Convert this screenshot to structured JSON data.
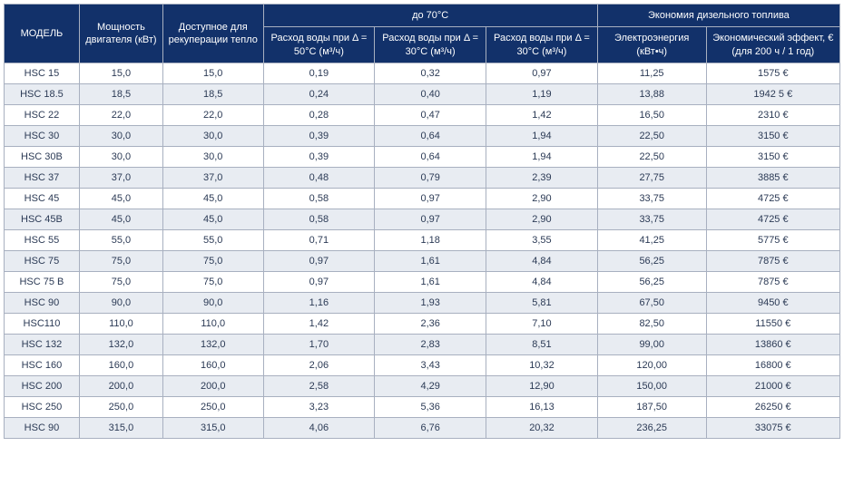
{
  "header": {
    "model": "МОДЕЛЬ",
    "power": "Мощность двигателя (кВт)",
    "recup_heat": "Доступное для рекуперации тепло",
    "group_70c": "до 70°C",
    "flow_50": "Расход воды при Δ = 50°C (м³/ч)",
    "flow_30a": "Расход воды при Δ = 30°C (м³/ч)",
    "flow_30b": "Расход воды при Δ = 30°C (м³/ч)",
    "group_diesel": "Экономия дизельного топлива",
    "electricity": "Электроэнергия (кВт•ч)",
    "econ_effect": "Экономический эффект, € (для 200 ч / 1 год)"
  },
  "rows": [
    {
      "model": "HSC 15",
      "power": "15,0",
      "recup": "15,0",
      "f50": "0,19",
      "f30a": "0,32",
      "f30b": "0,97",
      "elec": "11,25",
      "econ": "1575 €"
    },
    {
      "model": "HSC 18.5",
      "power": "18,5",
      "recup": "18,5",
      "f50": "0,24",
      "f30a": "0,40",
      "f30b": "1,19",
      "elec": "13,88",
      "econ": "1942 5 €"
    },
    {
      "model": "HSC 22",
      "power": "22,0",
      "recup": "22,0",
      "f50": "0,28",
      "f30a": "0,47",
      "f30b": "1,42",
      "elec": "16,50",
      "econ": "2310 €"
    },
    {
      "model": "HSC 30",
      "power": "30,0",
      "recup": "30,0",
      "f50": "0,39",
      "f30a": "0,64",
      "f30b": "1,94",
      "elec": "22,50",
      "econ": "3150 €"
    },
    {
      "model": "HSC 30B",
      "power": "30,0",
      "recup": "30,0",
      "f50": "0,39",
      "f30a": "0,64",
      "f30b": "1,94",
      "elec": "22,50",
      "econ": "3150 €"
    },
    {
      "model": "HSC 37",
      "power": "37,0",
      "recup": "37,0",
      "f50": "0,48",
      "f30a": "0,79",
      "f30b": "2,39",
      "elec": "27,75",
      "econ": "3885 €"
    },
    {
      "model": "HSC 45",
      "power": "45,0",
      "recup": "45,0",
      "f50": "0,58",
      "f30a": "0,97",
      "f30b": "2,90",
      "elec": "33,75",
      "econ": "4725 €"
    },
    {
      "model": "HSC 45B",
      "power": "45,0",
      "recup": "45,0",
      "f50": "0,58",
      "f30a": "0,97",
      "f30b": "2,90",
      "elec": "33,75",
      "econ": "4725 €"
    },
    {
      "model": "HSC 55",
      "power": "55,0",
      "recup": "55,0",
      "f50": "0,71",
      "f30a": "1,18",
      "f30b": "3,55",
      "elec": "41,25",
      "econ": "5775 €"
    },
    {
      "model": "HSC 75",
      "power": "75,0",
      "recup": "75,0",
      "f50": "0,97",
      "f30a": "1,61",
      "f30b": "4,84",
      "elec": "56,25",
      "econ": "7875 €"
    },
    {
      "model": "HSC 75 B",
      "power": "75,0",
      "recup": "75,0",
      "f50": "0,97",
      "f30a": "1,61",
      "f30b": "4,84",
      "elec": "56,25",
      "econ": "7875 €"
    },
    {
      "model": "HSC 90",
      "power": "90,0",
      "recup": "90,0",
      "f50": "1,16",
      "f30a": "1,93",
      "f30b": "5,81",
      "elec": "67,50",
      "econ": "9450 €"
    },
    {
      "model": "HSC110",
      "power": "110,0",
      "recup": "110,0",
      "f50": "1,42",
      "f30a": "2,36",
      "f30b": "7,10",
      "elec": "82,50",
      "econ": "11550 €"
    },
    {
      "model": "HSC 132",
      "power": "132,0",
      "recup": "132,0",
      "f50": "1,70",
      "f30a": "2,83",
      "f30b": "8,51",
      "elec": "99,00",
      "econ": "13860 €"
    },
    {
      "model": "HSC 160",
      "power": "160,0",
      "recup": "160,0",
      "f50": "2,06",
      "f30a": "3,43",
      "f30b": "10,32",
      "elec": "120,00",
      "econ": "16800 €"
    },
    {
      "model": "HSC 200",
      "power": "200,0",
      "recup": "200,0",
      "f50": "2,58",
      "f30a": "4,29",
      "f30b": "12,90",
      "elec": "150,00",
      "econ": "21000 €"
    },
    {
      "model": "HSC 250",
      "power": "250,0",
      "recup": "250,0",
      "f50": "3,23",
      "f30a": "5,36",
      "f30b": "16,13",
      "elec": "187,50",
      "econ": "26250 €"
    },
    {
      "model": "HSC 90",
      "power": "315,0",
      "recup": "315,0",
      "f50": "4,06",
      "f30a": "6,76",
      "f30b": "20,32",
      "elec": "236,25",
      "econ": "33075 €"
    }
  ],
  "style": {
    "header_bg": "#12316a",
    "header_fg": "#ffffff",
    "row_odd_bg": "#ffffff",
    "row_even_bg": "#e8ecf2",
    "border_color": "#a8b0c0",
    "text_color": "#2b3a55",
    "font_size_header": 11,
    "font_size_body": 11
  }
}
